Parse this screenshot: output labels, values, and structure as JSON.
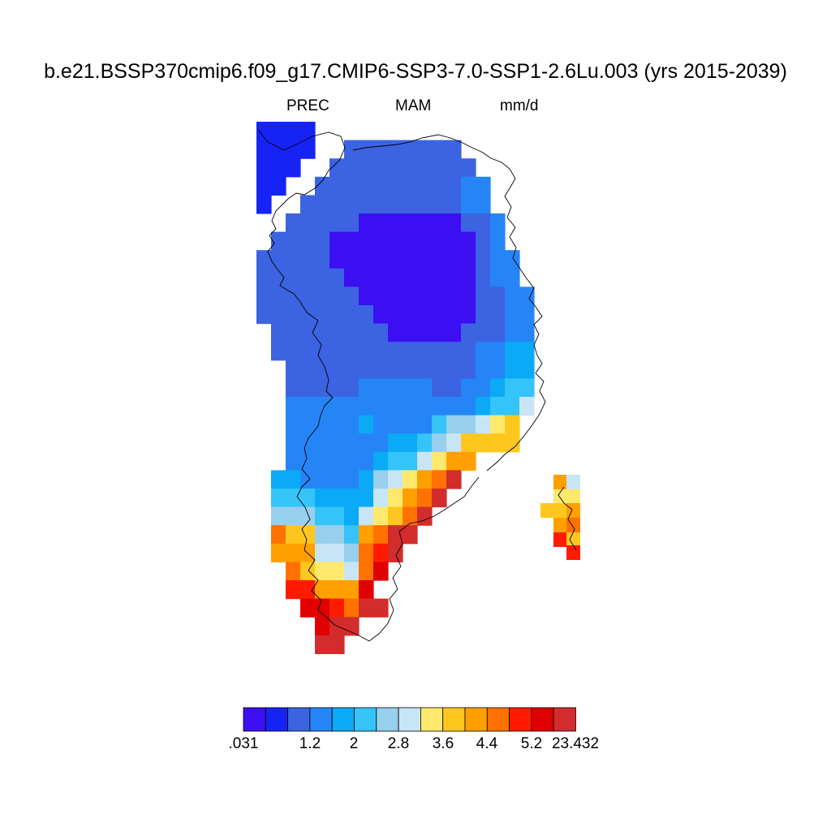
{
  "title": "b.e21.BSSP370cmip6.f09_g17.CMIP6-SSP3-7.0-SSP1-2.6Lu.003 (yrs 2015-2039)",
  "subtitle": {
    "variable": "PREC",
    "season": "MAM",
    "units": "mm/d"
  },
  "colorbar": {
    "colors": [
      "#3b0ff2",
      "#1623f5",
      "#3c63e1",
      "#2585f6",
      "#0aaaf6",
      "#34c4f8",
      "#97cfed",
      "#c8e5f6",
      "#ffe96d",
      "#ffc71e",
      "#ffa000",
      "#ff7100",
      "#ff1b00",
      "#e00000",
      "#d32c2c"
    ],
    "tick_labels": [
      ".031",
      "1.2",
      "2",
      "2.8",
      "3.6",
      "4.4",
      "5.2",
      "23.432"
    ]
  },
  "map_data": {
    "description_region": "Greenland",
    "value_classes": "0=lowest (.031-) ... 14=highest (-23.432)",
    "grid_rows": [
      "AAAA.....................",
      "AAAA..BBBBBBBB...........",
      "AAA..BBBBBBBBBB..........",
      "AA..BBBBBBBBBBCC.........",
      "A..BBBBBBBBBBBCC.........",
      "..BBBBB0000000BBC........",
      ".BBBB0000000000BC........",
      "BBBBB0000000000BCC.......",
      "BBBBBB000000000BCC.......",
      "BBBBBBB00000000BBCC......",
      "BBBBBBBB0000000BBCC......",
      ".BBBBBBBB00000BBBCC......",
      ".BBBBBBBBBBBBBBCCDD......",
      "..BBBBBBBBBBBBBCCDD......",
      "..BBBBBCCCCCBBCCDEE......",
      "..CCCCCCCCCCCCCDEEG......",
      "..CCCCCDCCCCEFFGHI.......",
      "..CCCCCCCDDEFGIIII.......",
      "..CCCCCCDEEGHJJ.........",
      ".DDCCCCDFGHJKN..........",
      ".EEEDDDDGHJKN...........",
      ".FFFEEDGHIKN............",
      ".KIIFFEJKNN.............",
      ".JJJGGFKLN..............",
      "..KIHHGKM...............",
      "..LLJJJM................",
      "...MMLKNN...............",
      "....MNN.................",
      "....NN.................."
    ]
  }
}
